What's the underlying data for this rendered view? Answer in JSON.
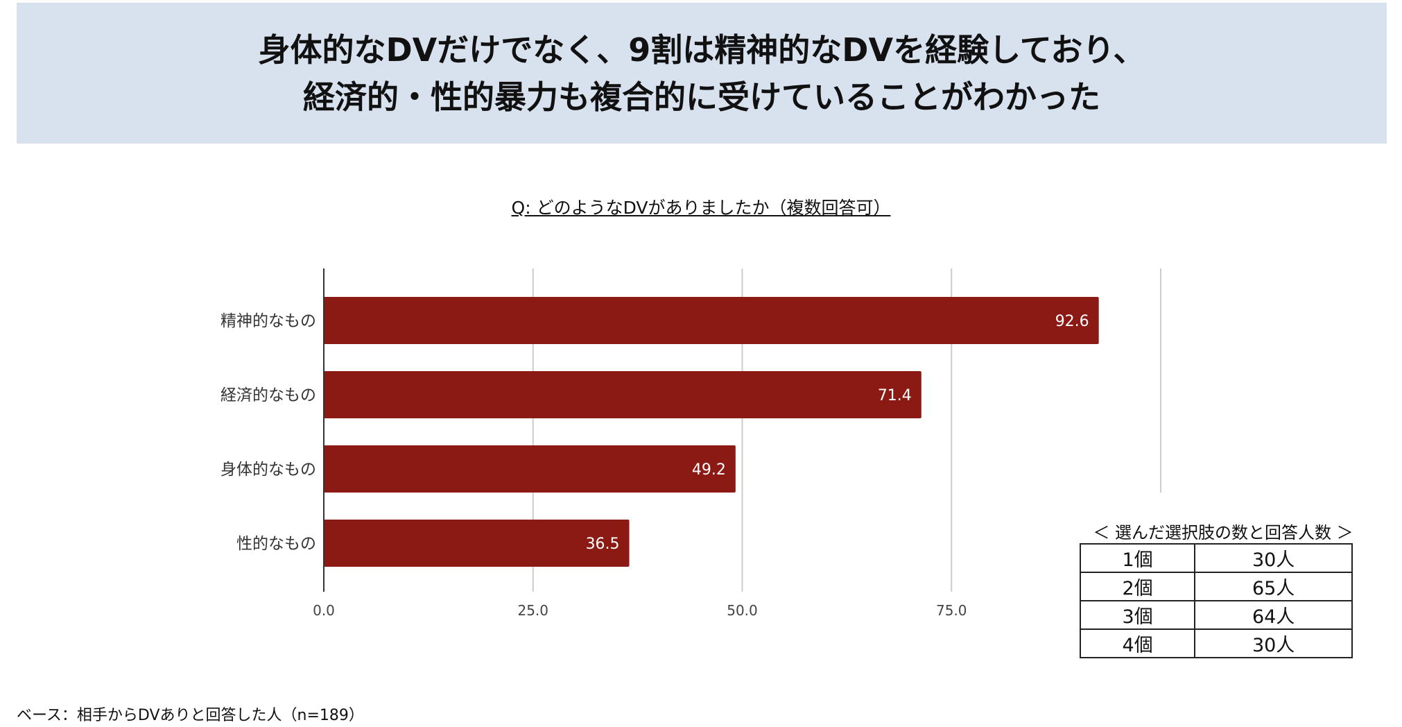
{
  "headline": {
    "line1": "身体的なDVだけでなく、9割は精神的なDVを経験しており、",
    "line2": "経済的・性的暴力も複合的に受けていることがわかった"
  },
  "chart_data": {
    "type": "bar",
    "orientation": "horizontal",
    "title": "Q: どのようなDVがありましたか（複数回答可）",
    "categories": [
      "精神的なもの",
      "経済的なもの",
      "身体的なもの",
      "性的なもの"
    ],
    "values": [
      92.6,
      71.4,
      49.2,
      36.5
    ],
    "value_labels": [
      "92.6",
      "71.4",
      "49.2",
      "36.5"
    ],
    "xlim": [
      0,
      100
    ],
    "xticks": [
      0,
      25,
      50,
      75
    ],
    "xtick_labels": [
      "0.0",
      "25.0",
      "50.0",
      "75.0"
    ],
    "grid": true,
    "bar_color": "#8b1a14"
  },
  "choices_table": {
    "title": "＜ 選んだ選択肢の数と回答人数 ＞",
    "rows": [
      {
        "choices": "1個",
        "respondents": "30人"
      },
      {
        "choices": "2個",
        "respondents": "65人"
      },
      {
        "choices": "3個",
        "respondents": "64人"
      },
      {
        "choices": "4個",
        "respondents": "30人"
      }
    ]
  },
  "base_note": "ベース：相手からDVありと回答した人（n=189）"
}
